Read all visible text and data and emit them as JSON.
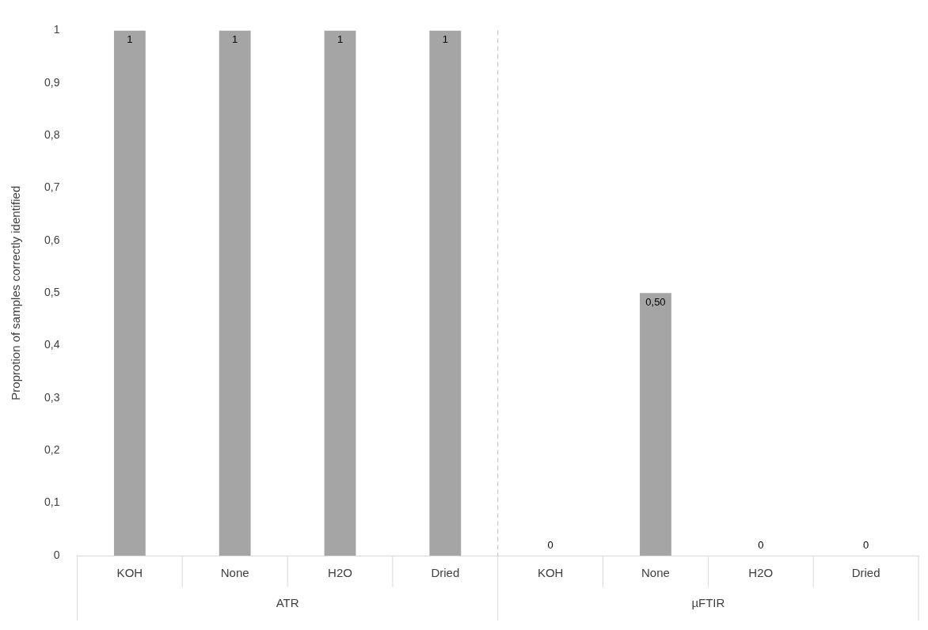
{
  "chart_data": {
    "type": "bar",
    "ylabel": "Proprotion of samples correctly identified",
    "categories": [
      "KOH",
      "None",
      "H2O",
      "Dried",
      "KOH",
      "None",
      "H2O",
      "Dried"
    ],
    "values": [
      1,
      1,
      1,
      1,
      0,
      0.5,
      0,
      0
    ],
    "value_labels": [
      "1",
      "1",
      "1",
      "1",
      "0",
      "0,50",
      "0",
      "0"
    ],
    "color": "#a5a5a5",
    "ylim": [
      0,
      1
    ],
    "yticks": [
      0,
      {
        "value": 0.1,
        "label": "0,1"
      },
      {
        "value": 0.2,
        "label": "0,2"
      },
      {
        "value": 0.3,
        "label": "0,3"
      },
      {
        "value": 0.4,
        "label": "0,4"
      },
      {
        "value": 0.5,
        "label": "0,5"
      },
      {
        "value": 0.6,
        "label": "0,6"
      },
      {
        "value": 0.7,
        "label": "0,7"
      },
      {
        "value": 0.8,
        "label": "0,8"
      },
      {
        "value": 0.9,
        "label": "0,9"
      },
      1
    ],
    "annotations": [
      "ATR",
      "µFTIR"
    ],
    "grid": false,
    "legend": false
  }
}
